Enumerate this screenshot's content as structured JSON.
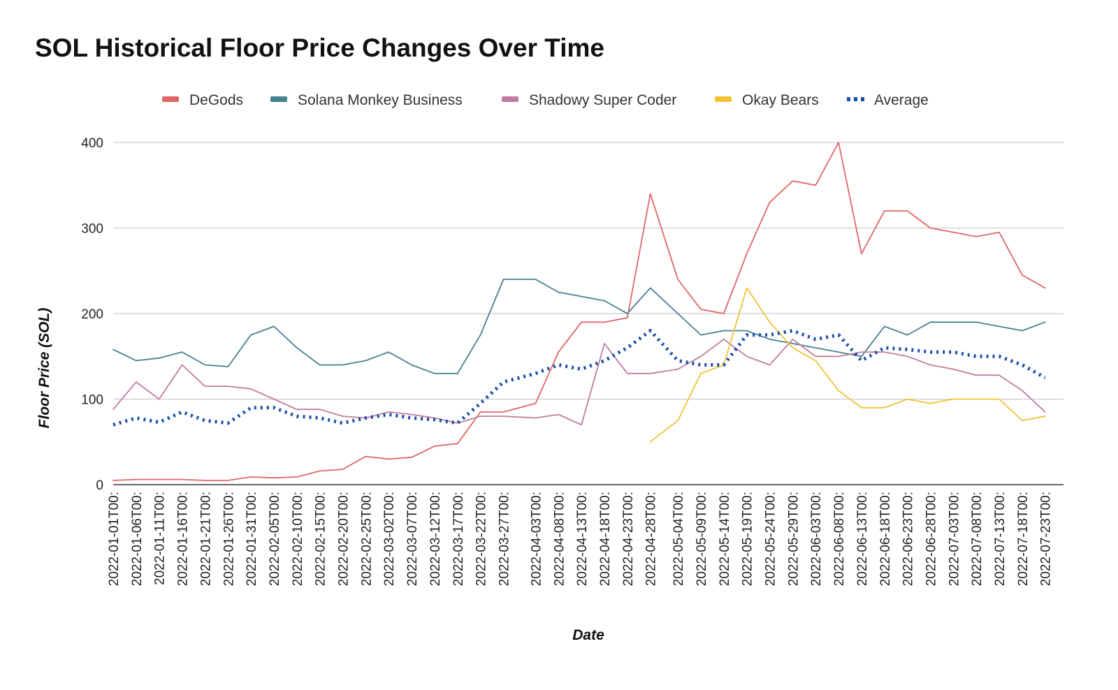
{
  "chart_data": {
    "type": "line",
    "title": "SOL Historical Floor Price Changes Over Time",
    "xlabel": "Date",
    "ylabel": "Floor Price (SOL)",
    "ylim": [
      0,
      400
    ],
    "yticks": [
      0,
      100,
      200,
      300,
      400
    ],
    "grid": true,
    "legend_position": "top",
    "x_tick_labels": [
      "2022-01-01T00:",
      "2022-01-06T00:",
      "2022-01-11T00:",
      "2022-01-16T00:",
      "2022-01-21T00:",
      "2022-01-26T00:",
      "2022-01-31T00:",
      "2022-02-05T00:",
      "2022-02-10T00:",
      "2022-02-15T00:",
      "2022-02-20T00:",
      "2022-02-25T00:",
      "2022-03-02T00:",
      "2022-03-07T00:",
      "2022-03-12T00:",
      "2022-03-17T00:",
      "2022-03-22T00:",
      "2022-03-27T00:",
      "2022-04-03T00:",
      "2022-04-08T00:",
      "2022-04-13T00:",
      "2022-04-18T00:",
      "2022-04-23T00:",
      "2022-04-28T00:",
      "2022-05-04T00:",
      "2022-05-09T00:",
      "2022-05-14T00:",
      "2022-05-19T00:",
      "2022-05-24T00:",
      "2022-05-29T00:",
      "2022-06-03T00:",
      "2022-06-08T00:",
      "2022-06-13T00:",
      "2022-06-18T00:",
      "2022-06-23T00:",
      "2022-06-28T00:",
      "2022-07-03T00:",
      "2022-07-08T00:",
      "2022-07-13T00:",
      "2022-07-18T00:",
      "2022-07-23T00:"
    ],
    "x": [
      "2022-01-01",
      "2022-01-06",
      "2022-01-11",
      "2022-01-16",
      "2022-01-21",
      "2022-01-26",
      "2022-01-31",
      "2022-02-05",
      "2022-02-10",
      "2022-02-15",
      "2022-02-20",
      "2022-02-25",
      "2022-03-02",
      "2022-03-07",
      "2022-03-12",
      "2022-03-17",
      "2022-03-22",
      "2022-03-27",
      "2022-04-03",
      "2022-04-08",
      "2022-04-13",
      "2022-04-18",
      "2022-04-23",
      "2022-04-28",
      "2022-05-04",
      "2022-05-09",
      "2022-05-14",
      "2022-05-19",
      "2022-05-24",
      "2022-05-29",
      "2022-06-03",
      "2022-06-08",
      "2022-06-13",
      "2022-06-18",
      "2022-06-23",
      "2022-06-28",
      "2022-07-03",
      "2022-07-08",
      "2022-07-13",
      "2022-07-18",
      "2022-07-23"
    ],
    "series": [
      {
        "name": "DeGods",
        "color": "#e06666",
        "style": "solid",
        "values": [
          5,
          6,
          6,
          6,
          5,
          5,
          9,
          8,
          9,
          16,
          18,
          33,
          30,
          32,
          45,
          48,
          85,
          85,
          95,
          155,
          190,
          190,
          195,
          340,
          240,
          205,
          200,
          270,
          330,
          355,
          350,
          400,
          270,
          320,
          320,
          300,
          295,
          290,
          295,
          245,
          230
        ]
      },
      {
        "name": "Solana Monkey Business",
        "color": "#45818e",
        "style": "solid",
        "values": [
          158,
          145,
          148,
          155,
          140,
          138,
          175,
          185,
          160,
          140,
          140,
          145,
          155,
          140,
          130,
          130,
          175,
          240,
          240,
          225,
          220,
          215,
          200,
          230,
          200,
          175,
          180,
          180,
          170,
          165,
          160,
          155,
          150,
          185,
          175,
          190,
          190,
          190,
          185,
          180,
          190
        ]
      },
      {
        "name": "Shadowy Super Coder",
        "color": "#c27ba0",
        "style": "solid",
        "values": [
          88,
          120,
          100,
          140,
          115,
          115,
          112,
          100,
          88,
          88,
          80,
          78,
          85,
          82,
          78,
          72,
          80,
          80,
          78,
          82,
          70,
          165,
          130,
          130,
          135,
          150,
          170,
          150,
          140,
          170,
          150,
          150,
          155,
          155,
          150,
          140,
          135,
          128,
          128,
          110,
          85
        ]
      },
      {
        "name": "Okay Bears",
        "color": "#f1c232",
        "style": "solid",
        "values": [
          null,
          null,
          null,
          null,
          null,
          null,
          null,
          null,
          null,
          null,
          null,
          null,
          null,
          null,
          null,
          null,
          null,
          null,
          null,
          null,
          null,
          null,
          null,
          50,
          75,
          130,
          140,
          230,
          190,
          160,
          145,
          110,
          90,
          90,
          100,
          95,
          100,
          100,
          100,
          75,
          80
        ]
      },
      {
        "name": "Average",
        "color": "#1c4fa8",
        "style": "dotted",
        "values": [
          70,
          78,
          73,
          85,
          75,
          72,
          90,
          90,
          80,
          78,
          72,
          78,
          82,
          78,
          76,
          72,
          95,
          120,
          130,
          140,
          135,
          145,
          160,
          180,
          145,
          140,
          140,
          175,
          175,
          180,
          170,
          175,
          145,
          160,
          158,
          155,
          155,
          150,
          150,
          140,
          125
        ]
      }
    ]
  }
}
